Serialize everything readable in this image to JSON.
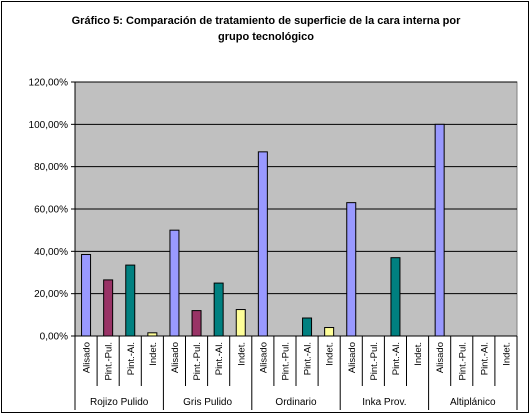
{
  "chart_data": {
    "type": "bar",
    "title_lines": [
      "Gráfico 5: Comparación de tratamiento de superficie de la cara interna por",
      "grupo tecnológico"
    ],
    "xlabel": "",
    "ylabel": "",
    "ylim": [
      0,
      1.2
    ],
    "ytick_labels": [
      "0,00%",
      "20,00%",
      "40,00%",
      "60,00%",
      "80,00%",
      "100,00%",
      "120,00%"
    ],
    "grid": true,
    "legend": "none",
    "plot_background": "#c0c0c0",
    "sub_categories": [
      "Alisado",
      "Pint.-Pul.",
      "Pint.-Al.",
      "Indet."
    ],
    "sub_colors": {
      "Alisado": "#9999ff",
      "Pint.-Pul.": "#993366",
      "Pint.-Al.": "#008080",
      "Indet.": "#ffff99"
    },
    "groups": [
      {
        "name": "Rojizo Pulido",
        "values": [
          0.385,
          0.265,
          0.335,
          0.015
        ]
      },
      {
        "name": "Gris Pulido",
        "values": [
          0.5,
          0.12,
          0.25,
          0.125
        ]
      },
      {
        "name": "Ordinario",
        "values": [
          0.87,
          0.0,
          0.085,
          0.04
        ]
      },
      {
        "name": "Inka Prov.",
        "values": [
          0.63,
          0.0,
          0.37,
          0.0
        ]
      },
      {
        "name": "Altiplánico",
        "values": [
          1.0,
          0.0,
          0.0,
          0.0
        ]
      }
    ]
  }
}
